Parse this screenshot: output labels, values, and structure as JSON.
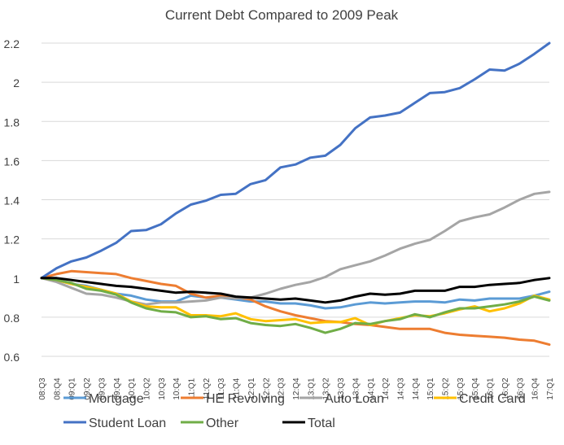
{
  "chart_data": {
    "type": "line",
    "title": "Current Debt Compared to 2009 Peak",
    "xlabel": "",
    "ylabel": "",
    "ylim": [
      0.6,
      2.2
    ],
    "yticks": [
      "0.6",
      "0.8",
      "1",
      "1.2",
      "1.4",
      "1.6",
      "1.8",
      "2",
      "2.2"
    ],
    "yticks_values": [
      0.6,
      0.8,
      1.0,
      1.2,
      1.4,
      1.6,
      1.8,
      2.0,
      2.2
    ],
    "grid": true,
    "legend_position": "bottom",
    "categories": [
      "08:Q3",
      "08:Q4",
      "09:Q1",
      "09:Q2",
      "09:Q3",
      "09:Q4",
      "10:Q1",
      "10:Q2",
      "10:Q3",
      "10:Q4",
      "11:Q1",
      "11:Q2",
      "11:Q3",
      "11:Q4",
      "12:Q1",
      "12:Q2",
      "12:Q3",
      "12:Q4",
      "13:Q1",
      "13:Q2",
      "13:Q3",
      "13:Q4",
      "14:Q1",
      "14:Q2",
      "14:Q3",
      "14:Q4",
      "15:Q1",
      "15:Q2",
      "15:Q3",
      "15:Q4",
      "16:Q1",
      "16:Q2",
      "16:Q3",
      "16:Q4",
      "17:Q1"
    ],
    "series": [
      {
        "name": "Mortgage",
        "color": "#5b9bd5",
        "values": [
          1.0,
          0.99,
          0.97,
          0.96,
          0.94,
          0.92,
          0.91,
          0.89,
          0.88,
          0.88,
          0.91,
          0.9,
          0.9,
          0.89,
          0.88,
          0.88,
          0.87,
          0.87,
          0.86,
          0.845,
          0.85,
          0.865,
          0.875,
          0.87,
          0.875,
          0.88,
          0.88,
          0.875,
          0.89,
          0.885,
          0.895,
          0.895,
          0.895,
          0.91,
          0.93
        ]
      },
      {
        "name": "HE Revolving",
        "color": "#ed7d31",
        "values": [
          1.0,
          1.02,
          1.035,
          1.03,
          1.025,
          1.02,
          1.0,
          0.985,
          0.97,
          0.96,
          0.92,
          0.9,
          0.91,
          0.9,
          0.89,
          0.855,
          0.83,
          0.81,
          0.795,
          0.78,
          0.775,
          0.765,
          0.76,
          0.75,
          0.74,
          0.74,
          0.74,
          0.72,
          0.71,
          0.705,
          0.7,
          0.695,
          0.685,
          0.68,
          0.66
        ]
      },
      {
        "name": "Auto Loan",
        "color": "#a5a5a5",
        "values": [
          1.0,
          0.98,
          0.95,
          0.92,
          0.915,
          0.9,
          0.88,
          0.865,
          0.875,
          0.875,
          0.88,
          0.885,
          0.9,
          0.895,
          0.9,
          0.92,
          0.945,
          0.965,
          0.98,
          1.005,
          1.045,
          1.065,
          1.085,
          1.115,
          1.15,
          1.175,
          1.195,
          1.24,
          1.29,
          1.31,
          1.325,
          1.36,
          1.4,
          1.43,
          1.44
        ]
      },
      {
        "name": "Credit Card",
        "color": "#ffc000",
        "values": [
          1.0,
          0.99,
          0.97,
          0.955,
          0.94,
          0.92,
          0.88,
          0.855,
          0.85,
          0.85,
          0.81,
          0.81,
          0.805,
          0.82,
          0.79,
          0.78,
          0.785,
          0.79,
          0.77,
          0.775,
          0.775,
          0.795,
          0.76,
          0.78,
          0.795,
          0.81,
          0.805,
          0.82,
          0.84,
          0.855,
          0.83,
          0.845,
          0.87,
          0.91,
          0.89
        ]
      },
      {
        "name": "Student Loan",
        "color": "#4472c4",
        "values": [
          1.0,
          1.05,
          1.085,
          1.105,
          1.14,
          1.18,
          1.24,
          1.245,
          1.275,
          1.33,
          1.375,
          1.395,
          1.425,
          1.43,
          1.48,
          1.5,
          1.565,
          1.58,
          1.615,
          1.625,
          1.68,
          1.765,
          1.82,
          1.83,
          1.845,
          1.895,
          1.945,
          1.95,
          1.97,
          2.015,
          2.065,
          2.06,
          2.095,
          2.145,
          2.2
        ]
      },
      {
        "name": "Other",
        "color": "#70ad47",
        "values": [
          1.0,
          0.99,
          0.975,
          0.945,
          0.935,
          0.915,
          0.875,
          0.845,
          0.83,
          0.825,
          0.8,
          0.805,
          0.79,
          0.795,
          0.77,
          0.76,
          0.755,
          0.765,
          0.745,
          0.72,
          0.74,
          0.77,
          0.765,
          0.78,
          0.79,
          0.815,
          0.8,
          0.825,
          0.845,
          0.845,
          0.855,
          0.865,
          0.88,
          0.905,
          0.885
        ]
      },
      {
        "name": "Total",
        "color": "#000000",
        "values": [
          1.0,
          1.0,
          0.99,
          0.98,
          0.97,
          0.96,
          0.955,
          0.945,
          0.935,
          0.925,
          0.93,
          0.925,
          0.92,
          0.905,
          0.9,
          0.895,
          0.89,
          0.895,
          0.885,
          0.875,
          0.885,
          0.905,
          0.92,
          0.915,
          0.92,
          0.935,
          0.935,
          0.935,
          0.955,
          0.955,
          0.965,
          0.97,
          0.975,
          0.99,
          1.0
        ]
      }
    ],
    "legend_rows": [
      [
        "Mortgage",
        "HE Revolving",
        "Auto Loan",
        "Credit Card"
      ],
      [
        "Student Loan",
        "Other",
        "Total"
      ]
    ]
  }
}
